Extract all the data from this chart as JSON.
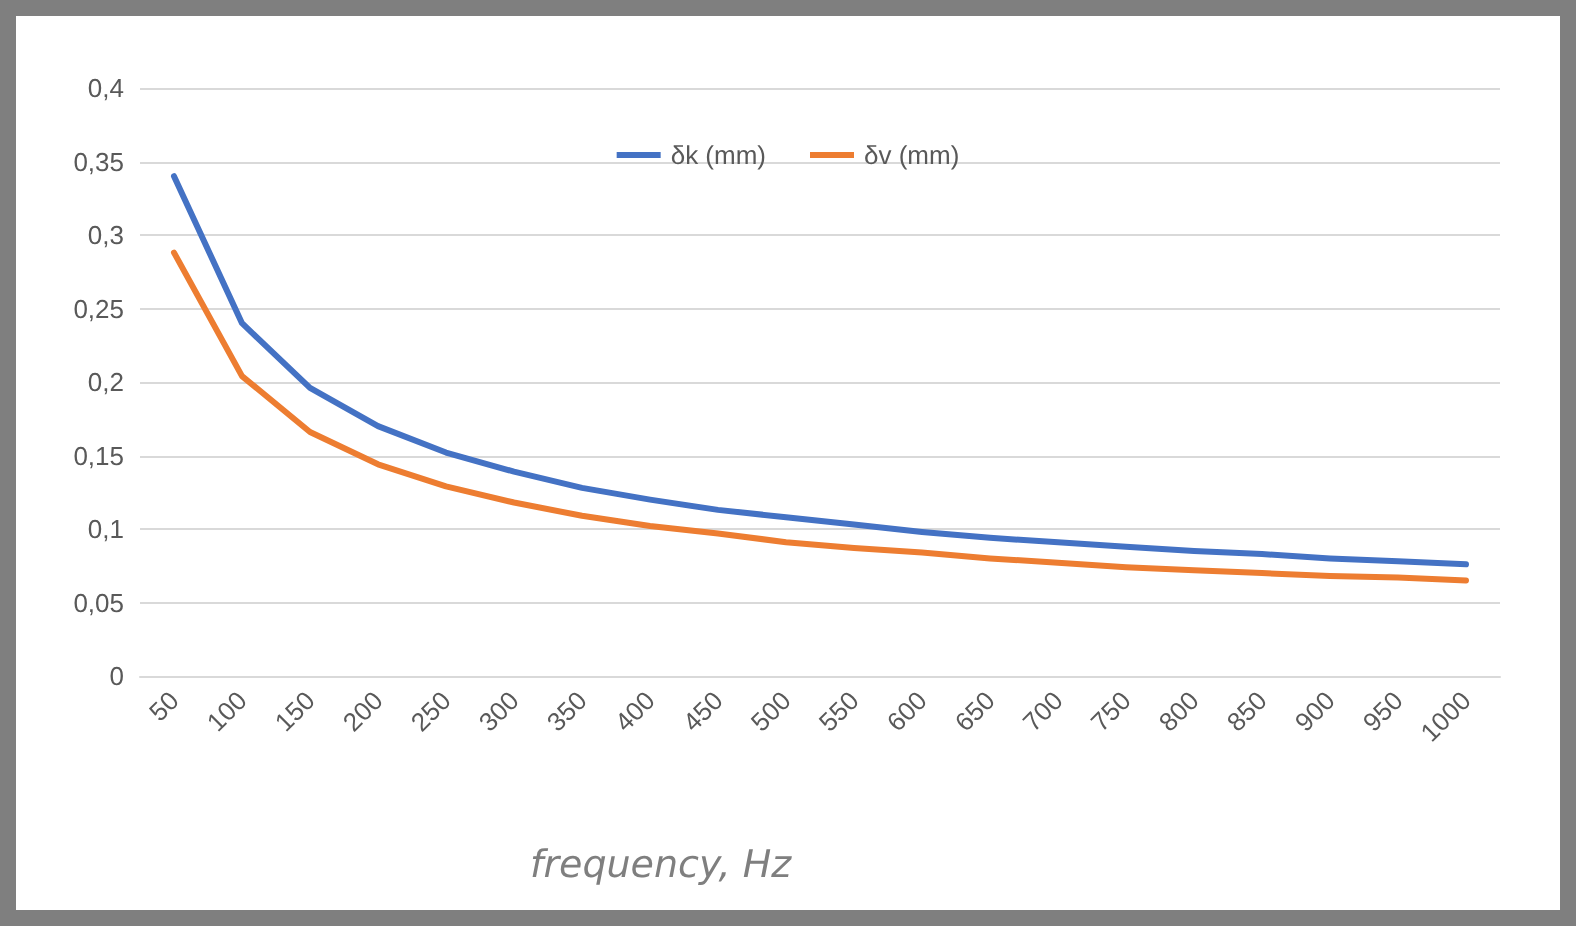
{
  "chart_data": {
    "type": "line",
    "xlabel": "frequency, Hz",
    "categories": [
      "50",
      "100",
      "150",
      "200",
      "250",
      "300",
      "350",
      "400",
      "450",
      "500",
      "550",
      "600",
      "650",
      "700",
      "750",
      "800",
      "850",
      "900",
      "950",
      "1000"
    ],
    "series": [
      {
        "name": "δk (mm)",
        "color": "#4472c4",
        "values": [
          0.34,
          0.24,
          0.196,
          0.17,
          0.152,
          0.139,
          0.128,
          0.12,
          0.113,
          0.108,
          0.103,
          0.098,
          0.094,
          0.091,
          0.088,
          0.085,
          0.083,
          0.08,
          0.078,
          0.076
        ]
      },
      {
        "name": "δv (mm)",
        "color": "#ed7d31",
        "values": [
          0.288,
          0.204,
          0.166,
          0.144,
          0.129,
          0.118,
          0.109,
          0.102,
          0.097,
          0.091,
          0.087,
          0.084,
          0.08,
          0.077,
          0.074,
          0.072,
          0.07,
          0.068,
          0.067,
          0.065
        ]
      }
    ],
    "ylim": [
      0,
      0.4
    ],
    "yticks": [
      {
        "value": 0,
        "label": "0"
      },
      {
        "value": 0.05,
        "label": "0,05"
      },
      {
        "value": 0.1,
        "label": "0,1"
      },
      {
        "value": 0.15,
        "label": "0,15"
      },
      {
        "value": 0.2,
        "label": "0,2"
      },
      {
        "value": 0.25,
        "label": "0,25"
      },
      {
        "value": 0.3,
        "label": "0,3"
      },
      {
        "value": 0.35,
        "label": "0,35"
      },
      {
        "value": 0.4,
        "label": "0,4"
      }
    ],
    "grid": "y",
    "legend": "top",
    "marker": "none",
    "line_style": "solid"
  }
}
